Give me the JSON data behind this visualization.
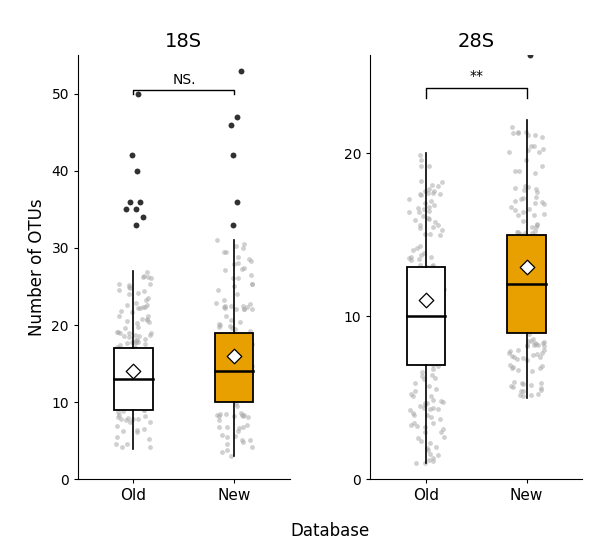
{
  "title_left": "18S",
  "title_right": "28S",
  "xlabel": "Database",
  "ylabel": "Number of OTUs",
  "categories": [
    "Old",
    "New"
  ],
  "box_colors": [
    "white",
    "#E8A000"
  ],
  "box_edge_color": "black",
  "sig_left": "NS.",
  "sig_right": "**",
  "left_ylim": [
    0,
    55
  ],
  "right_ylim": [
    0,
    26
  ],
  "left_yticks": [
    0,
    10,
    20,
    30,
    40,
    50
  ],
  "right_yticks": [
    0,
    10,
    20
  ],
  "18S_old": {
    "q1": 9,
    "median": 13,
    "q3": 17,
    "whisker_low": 4,
    "whisker_high": 27,
    "mean": 14,
    "outliers_dark": [
      33,
      34,
      35,
      35,
      36,
      36,
      40,
      42,
      50
    ],
    "n_points": 130
  },
  "18S_new": {
    "q1": 10,
    "median": 14,
    "q3": 19,
    "whisker_low": 3,
    "whisker_high": 31,
    "mean": 16,
    "outliers_dark": [
      33,
      36,
      42,
      46,
      47,
      53
    ],
    "n_points": 130
  },
  "28S_old": {
    "q1": 7,
    "median": 10,
    "q3": 13,
    "whisker_low": 1,
    "whisker_high": 20,
    "mean": 11,
    "outliers_dark": [],
    "n_points": 180
  },
  "28S_new": {
    "q1": 9,
    "median": 12,
    "q3": 15,
    "whisker_low": 5,
    "whisker_high": 22,
    "mean": 13,
    "outliers_dark": [
      26
    ],
    "n_points": 180
  }
}
